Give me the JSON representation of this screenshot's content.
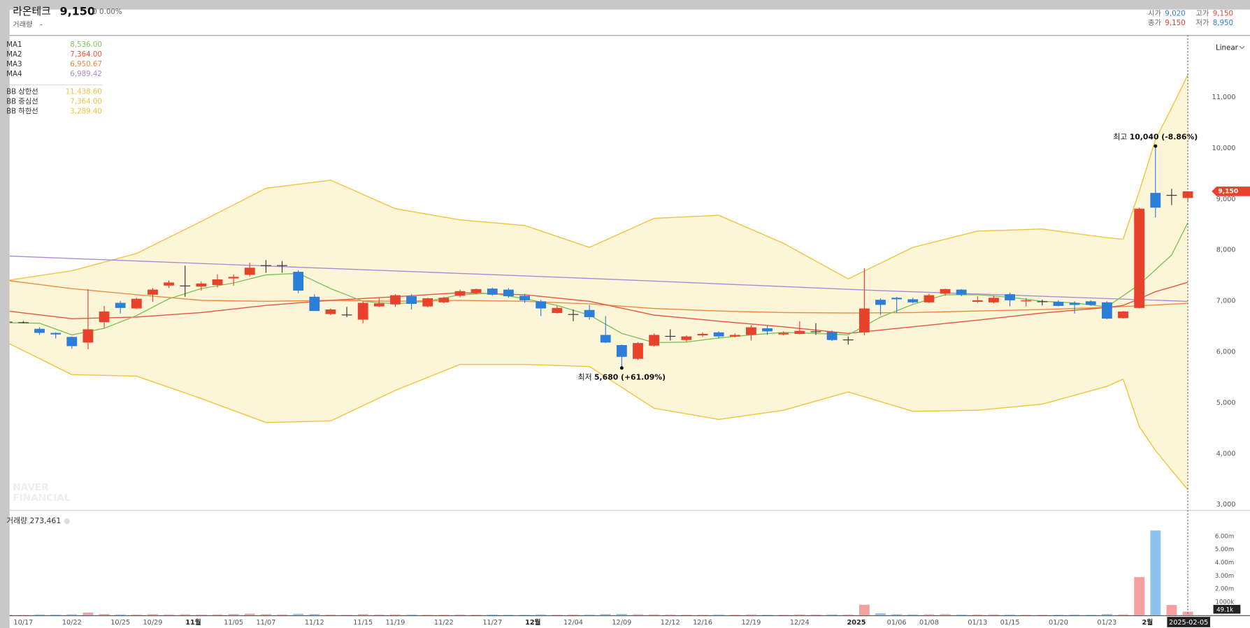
{
  "header": {
    "name": "라온테크",
    "price": "9,150",
    "change": "0 0.00%",
    "volume_label": "거래량",
    "volume_value": "-",
    "quote": [
      {
        "label": "시가",
        "value": "9,020",
        "color": "#2c7fd8"
      },
      {
        "label": "고가",
        "value": "9,150",
        "color": "#e8412c"
      },
      {
        "label": "종가",
        "value": "9,150",
        "color": "#e8412c"
      },
      {
        "label": "저가",
        "value": "8,950",
        "color": "#2c7fd8"
      }
    ]
  },
  "chart_data": [
    {
      "type": "candlestick",
      "scale": "Linear",
      "grid": false,
      "crosshair": true,
      "categories": [
        null,
        "10/17",
        null,
        null,
        "10/22",
        null,
        null,
        "10/25",
        null,
        "10/29",
        null,
        null,
        "11월",
        null,
        "11/05",
        null,
        "11/07",
        null,
        null,
        "11/12",
        null,
        null,
        "11/15",
        null,
        "11/19",
        null,
        null,
        "11/22",
        null,
        null,
        "11/27",
        null,
        null,
        "12월",
        null,
        "12/04",
        null,
        null,
        "12/09",
        null,
        null,
        "12/12",
        null,
        "12/16",
        null,
        null,
        "12/19",
        null,
        null,
        "12/24",
        null,
        null,
        null,
        "2025",
        null,
        "01/06",
        null,
        "01/08",
        null,
        null,
        "01/13",
        null,
        "01/15",
        null,
        null,
        "01/20",
        null,
        null,
        "01/23",
        null,
        null,
        "2월",
        null,
        "2025-02-05"
      ],
      "open": [
        6590,
        6580,
        6450,
        6370,
        6290,
        6180,
        6580,
        6960,
        6850,
        7120,
        7300,
        7300,
        7280,
        7310,
        7440,
        7510,
        7700,
        7700,
        7570,
        7080,
        6740,
        6730,
        6630,
        6890,
        6930,
        7090,
        6890,
        6970,
        7100,
        7160,
        7240,
        7220,
        7100,
        6990,
        6760,
        6740,
        6820,
        6330,
        6130,
        5860,
        6120,
        6310,
        6230,
        6320,
        6380,
        6300,
        6330,
        6460,
        6340,
        6350,
        6400,
        6390,
        6240,
        6380,
        7020,
        7060,
        7030,
        6970,
        7140,
        7220,
        6980,
        6970,
        7130,
        6990,
        6990,
        6980,
        6960,
        6990,
        6970,
        6660,
        6860,
        9120,
        9080,
        9020
      ],
      "high": [
        6600,
        6600,
        6480,
        6380,
        6300,
        7230,
        6900,
        7000,
        7060,
        7250,
        7400,
        7690,
        7380,
        7520,
        7520,
        7750,
        7800,
        7780,
        7600,
        7130,
        6850,
        6880,
        6980,
        7050,
        7130,
        7130,
        7060,
        7080,
        7220,
        7240,
        7260,
        7250,
        7140,
        7020,
        6900,
        6830,
        6920,
        6700,
        6140,
        6190,
        6360,
        6440,
        6320,
        6380,
        6400,
        6360,
        6520,
        6510,
        6400,
        6600,
        6560,
        6420,
        6300,
        7640,
        7050,
        7080,
        7060,
        7140,
        7240,
        7230,
        7090,
        7100,
        7160,
        7050,
        7020,
        7010,
        6990,
        7010,
        6990,
        6800,
        8830,
        10040,
        9200,
        9150
      ],
      "low": [
        6580,
        6560,
        6330,
        6260,
        6060,
        6050,
        6470,
        6750,
        6840,
        6980,
        7250,
        7080,
        7200,
        7260,
        7300,
        7480,
        7550,
        7550,
        7150,
        6800,
        6720,
        6680,
        6560,
        6880,
        6880,
        6830,
        6870,
        6950,
        7070,
        7130,
        7100,
        7060,
        6960,
        6700,
        6750,
        6600,
        6630,
        6170,
        5680,
        5840,
        6100,
        6220,
        6200,
        6290,
        6260,
        6280,
        6220,
        6330,
        6320,
        6340,
        6330,
        6210,
        6140,
        6320,
        6720,
        6760,
        6950,
        6960,
        7100,
        7090,
        6960,
        6950,
        6890,
        6890,
        6910,
        6890,
        6750,
        6900,
        6640,
        6650,
        6850,
        8640,
        8880,
        8950
      ],
      "close": [
        6590,
        6580,
        6370,
        6340,
        6110,
        6440,
        6790,
        6860,
        7040,
        7220,
        7360,
        7300,
        7340,
        7420,
        7470,
        7650,
        7700,
        7700,
        7200,
        6800,
        6830,
        6730,
        6960,
        6950,
        7110,
        6940,
        7050,
        7060,
        7190,
        7230,
        7120,
        7090,
        7010,
        6850,
        6860,
        6740,
        6680,
        6180,
        5900,
        6170,
        6330,
        6310,
        6300,
        6350,
        6300,
        6330,
        6480,
        6400,
        6370,
        6410,
        6400,
        6230,
        6240,
        6850,
        6920,
        7030,
        6970,
        7110,
        7230,
        7120,
        7010,
        7060,
        7010,
        7010,
        6990,
        6900,
        6920,
        6920,
        6650,
        6790,
        8810,
        8830,
        9080,
        9150
      ],
      "up_color": "#e8412c",
      "down_color": "#2c7fd8",
      "flat_color": "#333333",
      "band_fill": "#fdf5d8",
      "ylim": [
        2890,
        12220
      ],
      "yticks": [
        {
          "value": 3000,
          "label": "3,000"
        },
        {
          "value": 4000,
          "label": "4,000"
        },
        {
          "value": 5000,
          "label": "5,000"
        },
        {
          "value": 6000,
          "label": "6,000"
        },
        {
          "value": 7000,
          "label": "7,000"
        },
        {
          "value": 8000,
          "label": "8,000"
        },
        {
          "value": 9000,
          "label": "9,000"
        },
        {
          "value": 10000,
          "label": "10,000"
        },
        {
          "value": 11000,
          "label": "11,000"
        }
      ],
      "series": [
        {
          "name": "MA1",
          "legend_value": "8,536.00",
          "color": "#7cc35a",
          "x": [
            0,
            2,
            4,
            6,
            8,
            10,
            12,
            14,
            16,
            18,
            20,
            22,
            24,
            26,
            28,
            30,
            32,
            34,
            36,
            38,
            40,
            42,
            44,
            46,
            48,
            50,
            52,
            54,
            56,
            58,
            60,
            62,
            64,
            66,
            68,
            70,
            72,
            73
          ],
          "values": [
            6570,
            6560,
            6330,
            6460,
            6710,
            7040,
            7240,
            7350,
            7510,
            7540,
            7240,
            6990,
            6940,
            6990,
            7120,
            7150,
            7040,
            6910,
            6720,
            6360,
            6180,
            6190,
            6270,
            6330,
            6380,
            6360,
            6330,
            6680,
            6930,
            7120,
            7120,
            7070,
            6990,
            6960,
            6880,
            7320,
            7900,
            8536
          ]
        },
        {
          "name": "MA2",
          "legend_value": "7,364.00",
          "color": "#e8553e",
          "x": [
            0,
            4,
            8,
            12,
            16,
            20,
            24,
            28,
            32,
            36,
            40,
            44,
            48,
            52,
            56,
            60,
            64,
            68,
            69,
            70,
            71,
            72,
            73
          ],
          "values": [
            6800,
            6650,
            6680,
            6770,
            6910,
            7010,
            7080,
            7160,
            7120,
            6990,
            6720,
            6600,
            6490,
            6360,
            6490,
            6620,
            6760,
            6870,
            6910,
            7040,
            7180,
            7270,
            7364
          ]
        },
        {
          "name": "MA3",
          "legend_value": "6,950.67",
          "color": "#f0883e",
          "x": [
            0,
            4,
            8,
            12,
            16,
            20,
            24,
            28,
            32,
            36,
            40,
            44,
            48,
            52,
            56,
            60,
            64,
            68,
            73
          ],
          "values": [
            7400,
            7240,
            7120,
            7010,
            6990,
            7010,
            6990,
            7010,
            6990,
            6940,
            6850,
            6800,
            6770,
            6760,
            6770,
            6800,
            6830,
            6870,
            6950.67
          ]
        },
        {
          "name": "MA4",
          "legend_value": "6,989.42",
          "color": "#a98bd6",
          "x": [
            0,
            18,
            36,
            54,
            73
          ],
          "values": [
            7880,
            7660,
            7440,
            7200,
            6989.42
          ]
        },
        {
          "name": "BB 상한선",
          "legend_value": "11,438.60",
          "color": "#f2c23a",
          "band": "upper",
          "x": [
            0,
            4,
            8,
            12,
            16,
            20,
            24,
            28,
            32,
            36,
            40,
            44,
            48,
            52,
            56,
            60,
            64,
            68,
            69,
            70,
            71,
            72,
            73
          ],
          "values": [
            7400,
            7590,
            7930,
            8560,
            9210,
            9370,
            8810,
            8590,
            8480,
            8050,
            8620,
            8680,
            8130,
            7430,
            8050,
            8370,
            8410,
            8240,
            8210,
            9150,
            10170,
            10790,
            11438.6
          ]
        },
        {
          "name": "BB 중심선",
          "legend_value": "7,364.00",
          "color": "#f2c23a",
          "band": "middle"
        },
        {
          "name": "BB 하한선",
          "legend_value": "3,289.40",
          "color": "#f2c23a",
          "band": "lower",
          "x": [
            0,
            4,
            8,
            12,
            16,
            20,
            24,
            28,
            32,
            36,
            40,
            44,
            48,
            52,
            56,
            60,
            64,
            68,
            69,
            70,
            71,
            72,
            73
          ],
          "values": [
            6180,
            5550,
            5520,
            5080,
            4610,
            4640,
            5240,
            5750,
            5750,
            5710,
            4890,
            4670,
            4850,
            5210,
            4830,
            4850,
            4970,
            5320,
            5460,
            4530,
            4060,
            3670,
            3289.4
          ]
        }
      ],
      "annotations": [
        {
          "label": "최고",
          "text": "10,040 (-8.86%)"
        },
        {
          "label": "최저",
          "text": "5,680 (+61.09%)"
        }
      ],
      "last_price_label": "9,150",
      "watermark": [
        "NAVER",
        "FINANCIAL"
      ]
    },
    {
      "type": "bar",
      "title": "거래량",
      "total_label": "273,461",
      "crosshair_label": "49.1k",
      "up_color": "#f4a0a0",
      "down_color": "#8ec3f0",
      "values": [
        40000,
        30000,
        60000,
        50000,
        70000,
        200000,
        90000,
        60000,
        50000,
        80000,
        60000,
        70000,
        50000,
        60000,
        90000,
        120000,
        80000,
        60000,
        110000,
        90000,
        50000,
        40000,
        80000,
        50000,
        60000,
        50000,
        40000,
        40000,
        50000,
        40000,
        50000,
        40000,
        40000,
        60000,
        40000,
        50000,
        50000,
        90000,
        100000,
        70000,
        60000,
        50000,
        40000,
        40000,
        50000,
        40000,
        60000,
        40000,
        40000,
        60000,
        50000,
        60000,
        50000,
        800000,
        150000,
        80000,
        60000,
        70000,
        80000,
        50000,
        50000,
        60000,
        50000,
        40000,
        40000,
        40000,
        50000,
        40000,
        90000,
        60000,
        2900000,
        6450000,
        780000,
        273461
      ],
      "ylim": [
        0,
        7700000
      ],
      "yticks": [
        {
          "value": 1000000,
          "label": "1000k"
        },
        {
          "value": 2000000,
          "label": "2.00m"
        },
        {
          "value": 3000000,
          "label": "3.00m"
        },
        {
          "value": 4000000,
          "label": "4.00m"
        },
        {
          "value": 5000000,
          "label": "5.00m"
        },
        {
          "value": 6000000,
          "label": "6.00m"
        }
      ]
    }
  ]
}
